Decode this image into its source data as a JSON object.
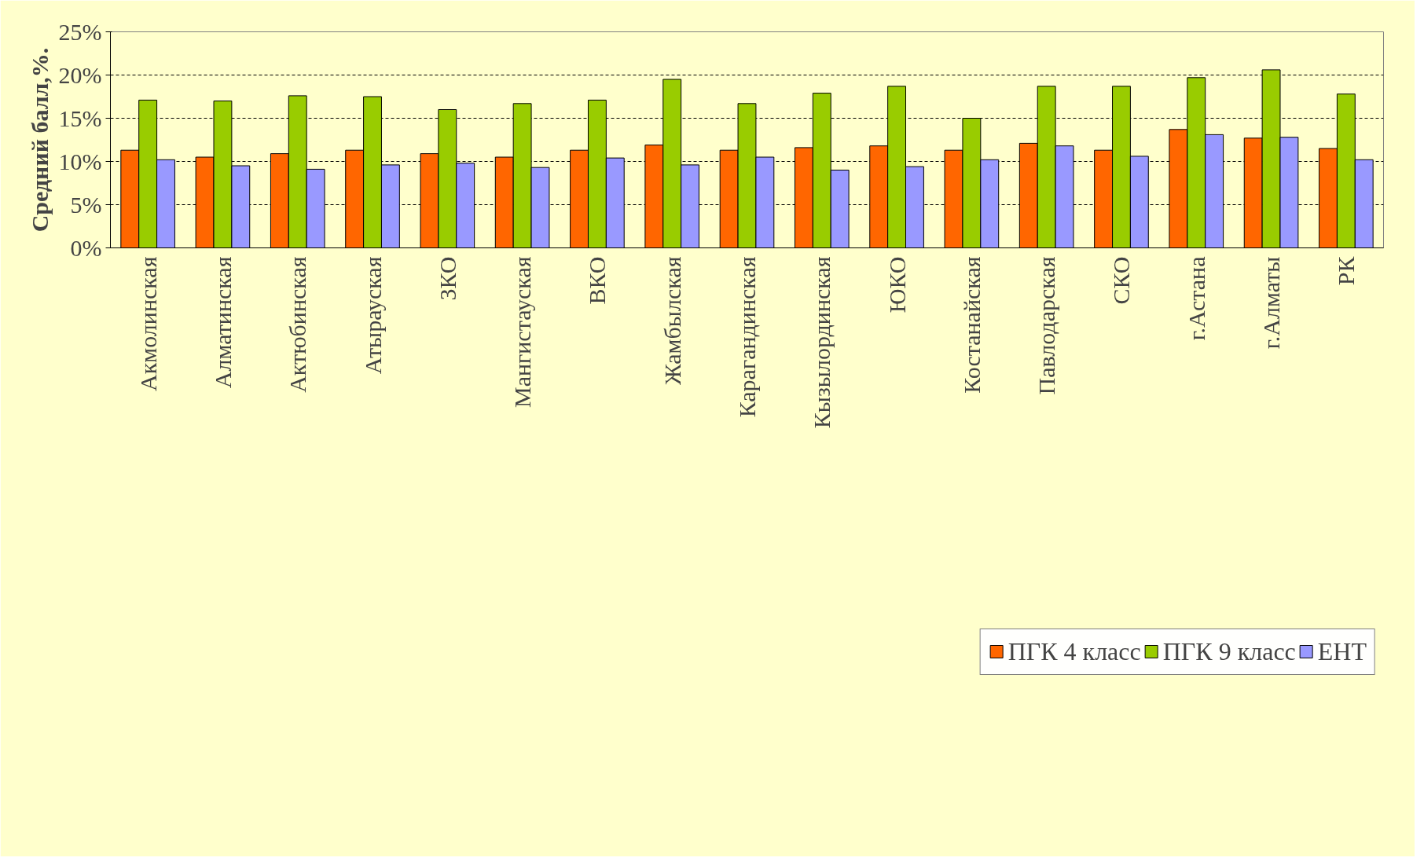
{
  "chart_data": {
    "type": "bar",
    "ylabel": "Средний балл,%.",
    "categories": [
      "Акмолинская",
      "Алматинская",
      "Актюбинская",
      "Атырауская",
      "ЗКО",
      "Мангистауская",
      "ВКО",
      "Жамбылская",
      "Карагандинская",
      "Кызылординская",
      "ЮКО",
      "Костанайская",
      "Павлодарская",
      "СКО",
      "г.Астана",
      "г.Алматы",
      "РК"
    ],
    "series": [
      {
        "name": "ПГК 4 класс",
        "color": "#ff6600",
        "values": [
          11.3,
          10.5,
          10.9,
          11.3,
          10.9,
          10.5,
          11.3,
          11.9,
          11.3,
          11.6,
          11.8,
          11.3,
          12.1,
          11.3,
          13.7,
          12.7,
          11.5
        ]
      },
      {
        "name": "ПГК 9 класс",
        "color": "#99cc00",
        "values": [
          17.1,
          17.0,
          17.6,
          17.5,
          16.0,
          16.7,
          17.1,
          19.5,
          16.7,
          17.9,
          18.7,
          15.0,
          18.7,
          18.7,
          19.7,
          20.6,
          17.8
        ]
      },
      {
        "name": "ЕНТ",
        "color": "#9999ff",
        "values": [
          10.2,
          9.5,
          9.1,
          9.6,
          9.8,
          9.3,
          10.4,
          9.6,
          10.5,
          9.0,
          9.4,
          10.2,
          11.8,
          10.6,
          13.1,
          12.8,
          10.2
        ]
      }
    ],
    "ylim": [
      0,
      25
    ],
    "yticks": [
      {
        "value": 0,
        "label": "0%"
      },
      {
        "value": 5,
        "label": "5%"
      },
      {
        "value": 10,
        "label": "10%"
      },
      {
        "value": 15,
        "label": "15%"
      },
      {
        "value": 20,
        "label": "20%"
      },
      {
        "value": 25,
        "label": "25%"
      }
    ],
    "grid": "y",
    "legend": "bottom"
  }
}
